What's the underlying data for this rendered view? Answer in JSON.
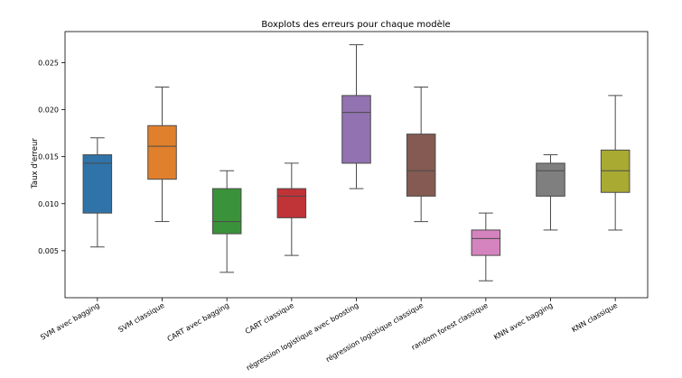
{
  "chart_data": {
    "type": "box",
    "title": "Boxplots des erreurs pour chaque modèle",
    "xlabel": "",
    "ylabel": "Taux d'erreur",
    "ylim": [
      0.0,
      0.0283
    ],
    "yticks": [
      0.005,
      0.01,
      0.015,
      0.02,
      0.025
    ],
    "ytick_labels": [
      "0.005",
      "0.010",
      "0.015",
      "0.020",
      "0.025"
    ],
    "grid": false,
    "categories": [
      "SVM avec bagging",
      "SVM classique",
      "CART avec bagging",
      "CART classique",
      "régression logistique avec boosting",
      "régression logistique classique",
      "random forest classique",
      "KNN avec bagging",
      "KNN classique"
    ],
    "boxes": [
      {
        "whisker_low": 0.0054,
        "q1": 0.009,
        "median": 0.0143,
        "q3": 0.0152,
        "whisker_high": 0.017,
        "color": "#2f73a8"
      },
      {
        "whisker_low": 0.0081,
        "q1": 0.0126,
        "median": 0.0161,
        "q3": 0.0183,
        "whisker_high": 0.0224,
        "color": "#e0802c"
      },
      {
        "whisker_low": 0.0027,
        "q1": 0.0068,
        "median": 0.0081,
        "q3": 0.0116,
        "whisker_high": 0.0135,
        "color": "#3a933a"
      },
      {
        "whisker_low": 0.0045,
        "q1": 0.0085,
        "median": 0.0108,
        "q3": 0.0116,
        "whisker_high": 0.0143,
        "color": "#c03336"
      },
      {
        "whisker_low": 0.0116,
        "q1": 0.0143,
        "median": 0.0197,
        "q3": 0.0215,
        "whisker_high": 0.0269,
        "color": "#9272b0"
      },
      {
        "whisker_low": 0.0081,
        "q1": 0.0108,
        "median": 0.0135,
        "q3": 0.0174,
        "whisker_high": 0.0224,
        "color": "#845a52"
      },
      {
        "whisker_low": 0.0018,
        "q1": 0.0045,
        "median": 0.0063,
        "q3": 0.0072,
        "whisker_high": 0.009,
        "color": "#d583bf"
      },
      {
        "whisker_low": 0.0072,
        "q1": 0.0108,
        "median": 0.0135,
        "q3": 0.0143,
        "whisker_high": 0.0152,
        "color": "#7f7f7f"
      },
      {
        "whisker_low": 0.0072,
        "q1": 0.0112,
        "median": 0.0135,
        "q3": 0.0157,
        "whisker_high": 0.0215,
        "color": "#a8aa32"
      }
    ],
    "line_color": "#4a4a4a"
  }
}
